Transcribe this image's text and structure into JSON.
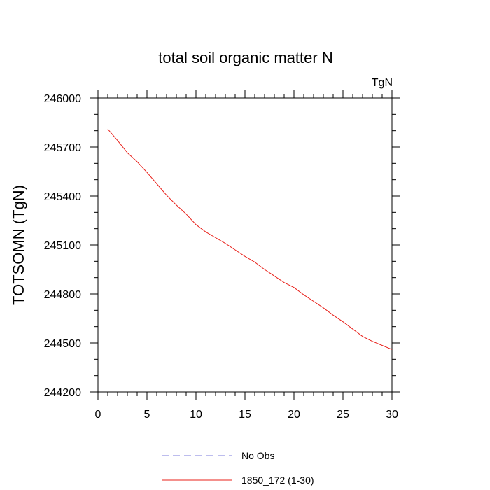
{
  "chart_data": {
    "type": "line",
    "title": "total soil organic matter N",
    "units": "TgN",
    "xlabel": "",
    "ylabel": "TOTSOMN  (TgN)",
    "xlim": [
      0,
      30
    ],
    "ylim": [
      244200,
      246000
    ],
    "xticks": [
      0,
      5,
      10,
      15,
      20,
      25,
      30
    ],
    "xtick_labels": [
      "0",
      "5",
      "10",
      "15",
      "20",
      "25",
      "30"
    ],
    "yticks": [
      244200,
      244500,
      244800,
      245100,
      245400,
      245700,
      246000
    ],
    "ytick_labels": [
      "244200",
      "244500",
      "244800",
      "245100",
      "245400",
      "245700",
      "246000"
    ],
    "grid": false,
    "legend_position": "bottom-center",
    "series": [
      {
        "name": "No Obs",
        "color": "#7b7bdd",
        "dash": "dashed",
        "x": [],
        "y": []
      },
      {
        "name": "1850_172 (1-30)",
        "color": "#e8201a",
        "dash": "solid",
        "x": [
          1,
          2,
          3,
          4,
          5,
          6,
          7,
          8,
          9,
          10,
          11,
          12,
          13,
          14,
          15,
          16,
          17,
          18,
          19,
          20,
          21,
          22,
          23,
          24,
          25,
          26,
          27,
          28,
          29,
          30
        ],
        "y": [
          245810,
          245740,
          245665,
          245610,
          245545,
          245475,
          245405,
          245345,
          245290,
          245225,
          245180,
          245145,
          245110,
          245070,
          245030,
          244995,
          244950,
          244910,
          244870,
          244840,
          244795,
          244755,
          244715,
          244670,
          244630,
          244585,
          244540,
          244510,
          244485,
          244460
        ]
      }
    ]
  }
}
